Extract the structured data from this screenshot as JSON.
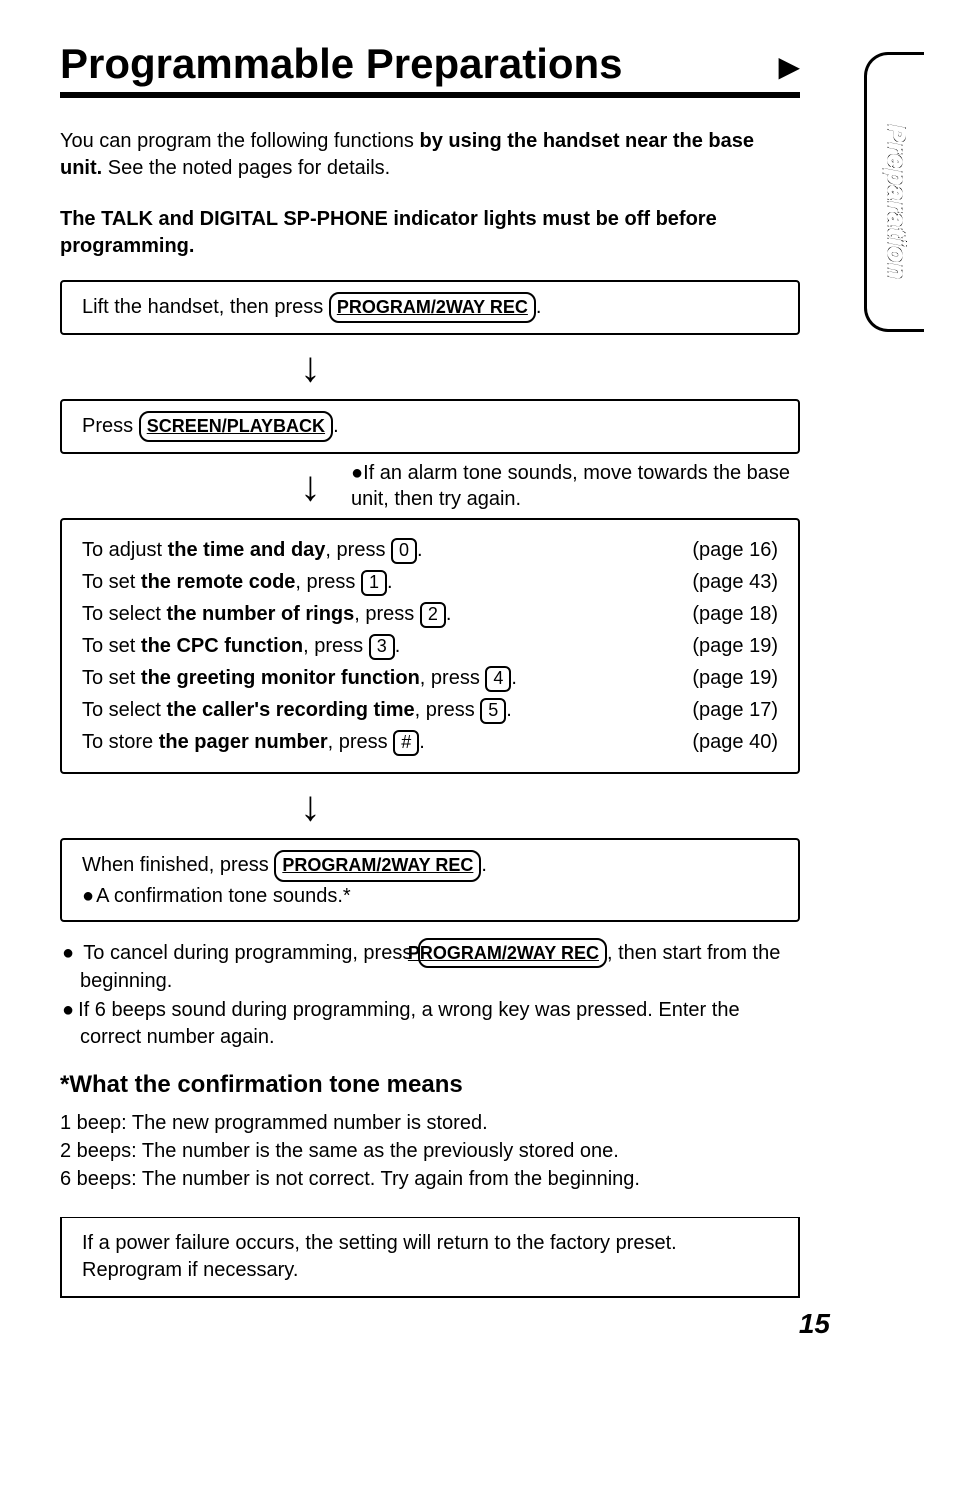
{
  "title": "Programmable Preparations",
  "sideTab": "Preparation",
  "intro": {
    "p1a": "You can program the following functions ",
    "p1b": "by using the handset near the base unit.",
    "p1c": " See the noted pages for details."
  },
  "warning": "The TALK and DIGITAL SP-PHONE indicator lights must be off before programming.",
  "step1": {
    "prefix": "Lift the handset, then press ",
    "button": "PROGRAM/2WAY REC",
    "suffix": "."
  },
  "step2": {
    "prefix": "Press ",
    "button": "SCREEN/PLAYBACK",
    "suffix": "."
  },
  "alarmNote": "If an alarm tone sounds, move towards the base unit, then try again.",
  "options": [
    {
      "pre": "To adjust ",
      "bold": "the time and day",
      "mid": ", press ",
      "key": "0",
      "post": ".",
      "page": "(page 16)"
    },
    {
      "pre": "To set ",
      "bold": "the remote code",
      "mid": ", press ",
      "key": "1",
      "post": ".",
      "page": "(page 43)"
    },
    {
      "pre": "To select ",
      "bold": "the number of rings",
      "mid": ", press ",
      "key": "2",
      "post": ".",
      "page": "(page 18)"
    },
    {
      "pre": "To set ",
      "bold": "the CPC function",
      "mid": ", press ",
      "key": "3",
      "post": ".",
      "page": "(page 19)"
    },
    {
      "pre": "To set ",
      "bold": "the greeting monitor function",
      "mid": ", press ",
      "key": "4",
      "post": ".",
      "page": "(page 19)"
    },
    {
      "pre": "To select ",
      "bold": "the caller's recording time",
      "mid": ", press ",
      "key": "5",
      "post": ".",
      "page": "(page 17)"
    },
    {
      "pre": "To store ",
      "bold": "the pager number",
      "mid": ", press ",
      "key": "#",
      "post": ".",
      "page": "(page 40)"
    }
  ],
  "step4": {
    "prefix": "When finished, press ",
    "button": "PROGRAM/2WAY REC",
    "suffix": ".",
    "note": "A confirmation tone sounds.*"
  },
  "cancel": {
    "b1a": "To cancel during programming, press ",
    "b1btn": "PROGRAM/2WAY REC",
    "b1b": ", then start from the beginning.",
    "b2": "If 6 beeps sound during programming, a wrong key was pressed. Enter the correct number again."
  },
  "confirmHeading": "*What the confirmation tone means",
  "beeps": [
    {
      "label": "1 beep:",
      "text": "The new programmed number is stored."
    },
    {
      "label": "2 beeps:",
      "text": "The number is the same as the previously stored one."
    },
    {
      "label": "6 beeps:",
      "text": "The number is not correct. Try again from the beginning."
    }
  ],
  "powerNote": "If a power failure occurs, the setting will return to the factory preset. Reprogram if necessary.",
  "pageNumber": "15"
}
